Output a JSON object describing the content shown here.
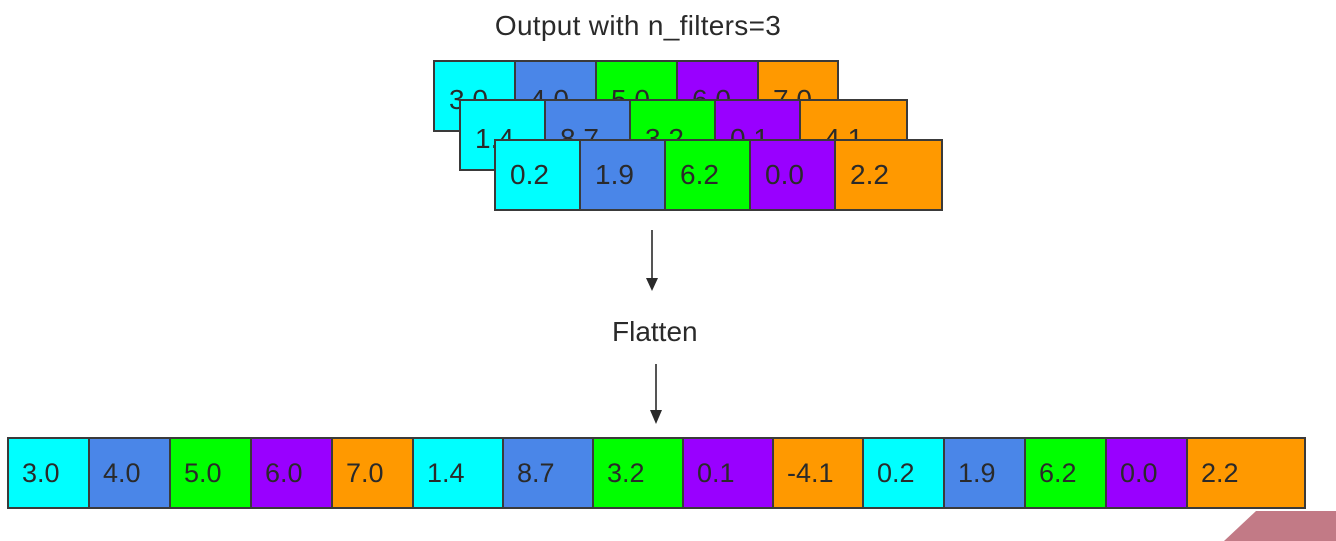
{
  "title": "Output with n_filters=3",
  "flatten_label": "Flatten",
  "colors": {
    "cyan": "#00ffff",
    "blue": "#4a86e8",
    "green": "#00ff00",
    "purple": "#9900ff",
    "orange": "#ff9900",
    "corner_accent": "#c27a86"
  },
  "filters": [
    {
      "values": [
        "3.0",
        "4.0",
        "5.0",
        "6.0",
        "7.0"
      ]
    },
    {
      "values": [
        "1.4",
        "8.7",
        "3.2",
        "0.1",
        "-4.1"
      ]
    },
    {
      "values": [
        "0.2",
        "1.9",
        "6.2",
        "0.0",
        "2.2"
      ]
    }
  ],
  "flattened": [
    "3.0",
    "4.0",
    "5.0",
    "6.0",
    "7.0",
    "1.4",
    "8.7",
    "3.2",
    "0.1",
    "-4.1",
    "0.2",
    "1.9",
    "6.2",
    "0.0",
    "2.2"
  ]
}
